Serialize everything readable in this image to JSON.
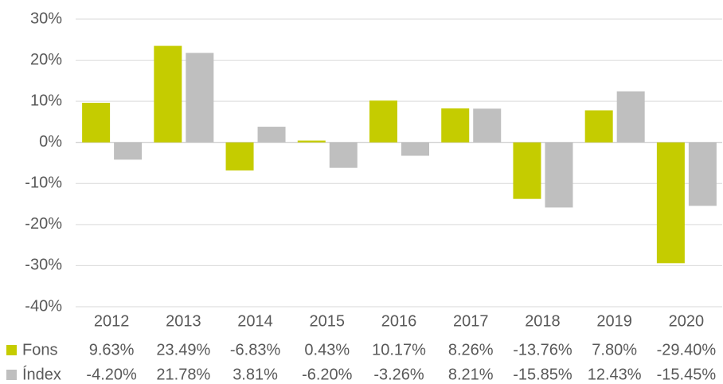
{
  "chart_data": {
    "type": "bar",
    "categories": [
      "2012",
      "2013",
      "2014",
      "2015",
      "2016",
      "2017",
      "2018",
      "2019",
      "2020"
    ],
    "series": [
      {
        "name": "Fons",
        "color": "#c5cc00",
        "values": [
          9.63,
          23.49,
          -6.83,
          0.43,
          10.17,
          8.26,
          -13.76,
          7.8,
          -29.4
        ],
        "value_labels": [
          "9.63%",
          "23.49%",
          "-6.83%",
          "0.43%",
          "10.17%",
          "8.26%",
          "-13.76%",
          "7.80%",
          "-29.40%"
        ]
      },
      {
        "name": "Índex",
        "color": "#bfbfbf",
        "values": [
          -4.2,
          21.78,
          3.81,
          -6.2,
          -3.26,
          8.21,
          -15.85,
          12.43,
          -15.45
        ],
        "value_labels": [
          "-4.20%",
          "21.78%",
          "3.81%",
          "-6.20%",
          "-3.26%",
          "8.21%",
          "-15.85%",
          "12.43%",
          "-15.45%"
        ]
      }
    ],
    "ylim": [
      -40,
      30
    ],
    "yticks": [
      {
        "value": -40,
        "label": "-40%"
      },
      {
        "value": -30,
        "label": "-30%"
      },
      {
        "value": -20,
        "label": "-20%"
      },
      {
        "value": -10,
        "label": "-10%"
      },
      {
        "value": 0,
        "label": "0%"
      },
      {
        "value": 10,
        "label": "10%"
      },
      {
        "value": 20,
        "label": "20%"
      },
      {
        "value": 30,
        "label": "30%"
      }
    ],
    "grid": true
  }
}
